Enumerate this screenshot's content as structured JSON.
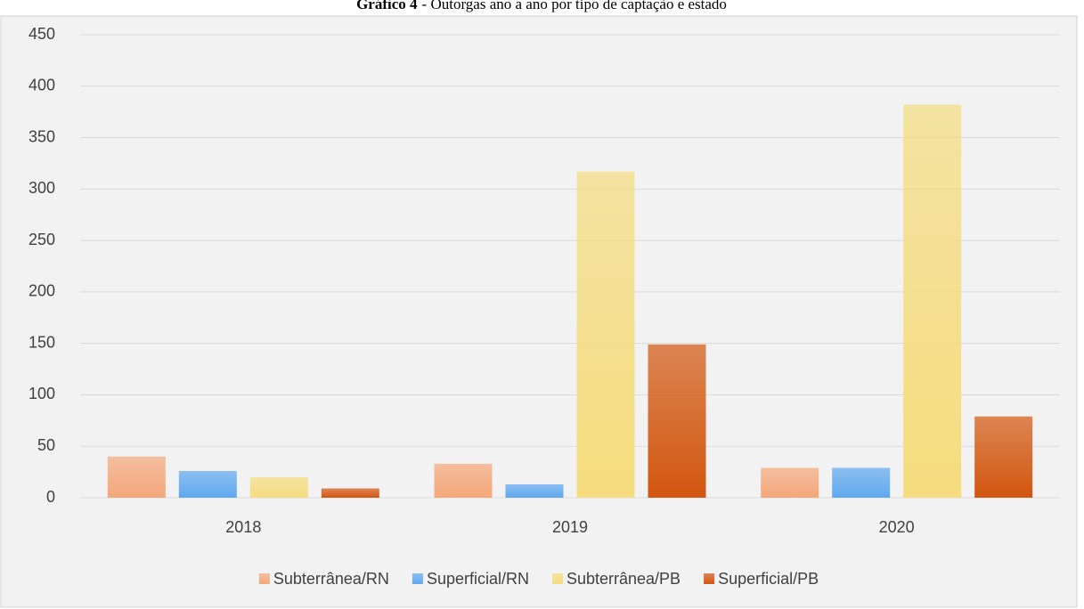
{
  "chart_data": {
    "type": "bar",
    "title_number": "Gráfico 4",
    "title": "- Outorgas ano a ano por tipo de captação e estado",
    "categories": [
      "2018",
      "2019",
      "2020"
    ],
    "series": [
      {
        "name": "Subterrânea/RN",
        "color": "#f4a77a",
        "values": [
          40,
          33,
          29
        ]
      },
      {
        "name": "Superficial/RN",
        "color": "#5fa8f0",
        "values": [
          26,
          13,
          29
        ]
      },
      {
        "name": "Subterrânea/PB",
        "color": "#f5dc7e",
        "values": [
          20,
          317,
          382
        ]
      },
      {
        "name": "Superficial/PB",
        "color": "#d2560f",
        "values": [
          9,
          149,
          79
        ]
      }
    ],
    "ylim": [
      0,
      450
    ],
    "yticks": [
      0,
      50,
      100,
      150,
      200,
      250,
      300,
      350,
      400,
      450
    ],
    "grid": true,
    "legend": "bottom"
  }
}
